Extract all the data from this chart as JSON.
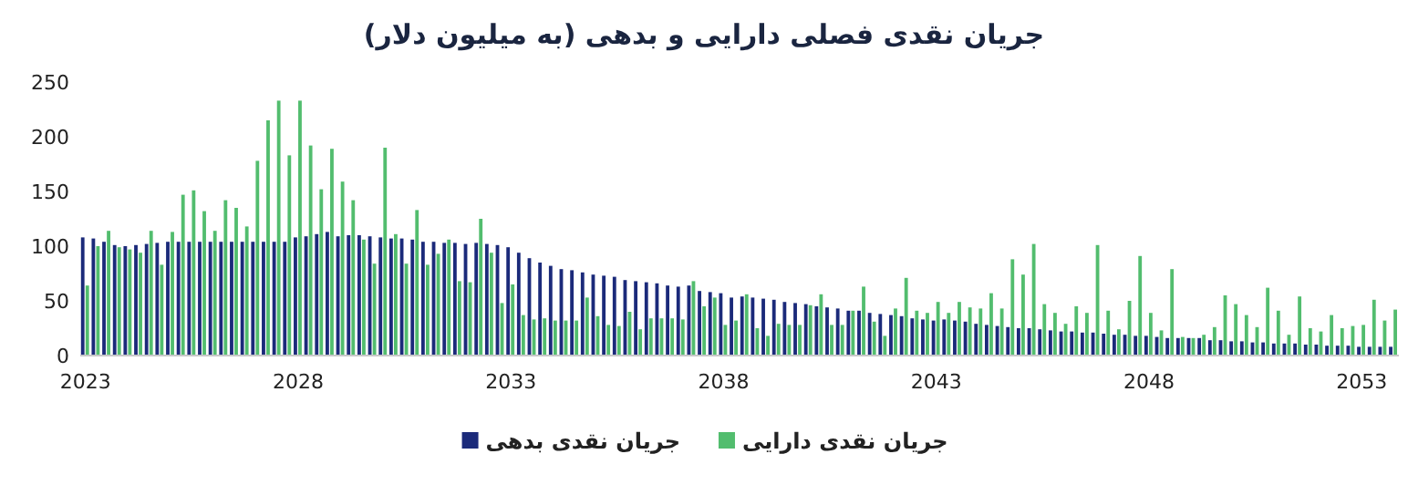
{
  "chart_data": {
    "type": "bar",
    "title": "جریان نقدی فصلی دارایی و بدهی (به میلیون دلار)",
    "categories": [
      "2023",
      null,
      null,
      null,
      null,
      null,
      null,
      null,
      null,
      null,
      null,
      null,
      null,
      null,
      null,
      null,
      null,
      null,
      null,
      null,
      "2028",
      null,
      null,
      null,
      null,
      null,
      null,
      null,
      null,
      null,
      null,
      null,
      null,
      null,
      null,
      null,
      null,
      null,
      null,
      null,
      "2033",
      null,
      null,
      null,
      null,
      null,
      null,
      null,
      null,
      null,
      null,
      null,
      null,
      null,
      null,
      null,
      null,
      null,
      null,
      null,
      "2038",
      null,
      null,
      null,
      null,
      null,
      null,
      null,
      null,
      null,
      null,
      null,
      null,
      null,
      null,
      null,
      null,
      null,
      null,
      null,
      "2043",
      null,
      null,
      null,
      null,
      null,
      null,
      null,
      null,
      null,
      null,
      null,
      null,
      null,
      null,
      null,
      null,
      null,
      null,
      null,
      "2048",
      null,
      null,
      null,
      null,
      null,
      null,
      null,
      null,
      null,
      null,
      null,
      null,
      null,
      null,
      null,
      null,
      null,
      null,
      null,
      "2053",
      null,
      null,
      null
    ],
    "series": [
      {
        "name": "جریان نقدی بدهی",
        "color": "#1b2a7a",
        "values": [
          108,
          107,
          104,
          101,
          100,
          101,
          102,
          103,
          104,
          104,
          104,
          104,
          104,
          104,
          104,
          104,
          104,
          104,
          104,
          104,
          108,
          109,
          111,
          113,
          109,
          110,
          110,
          109,
          108,
          107,
          107,
          106,
          104,
          104,
          103,
          103,
          102,
          103,
          102,
          101,
          99,
          94,
          89,
          85,
          82,
          79,
          78,
          76,
          74,
          73,
          72,
          69,
          68,
          67,
          66,
          64,
          63,
          64,
          59,
          58,
          57,
          53,
          54,
          53,
          52,
          51,
          49,
          48,
          47,
          45,
          44,
          43,
          41,
          41,
          39,
          38,
          37,
          36,
          34,
          33,
          32,
          33,
          32,
          31,
          29,
          28,
          27,
          26,
          25,
          25,
          24,
          23,
          22,
          22,
          21,
          21,
          20,
          19,
          19,
          18,
          18,
          17,
          16,
          16,
          16,
          16,
          14,
          14,
          13,
          13,
          12,
          12,
          11,
          11,
          11,
          10,
          10,
          9,
          9,
          9,
          8,
          8,
          8,
          8
        ]
      },
      {
        "name": "جریان نقدی دارایی",
        "color": "#52bd6e",
        "values": [
          64,
          100,
          114,
          99,
          97,
          94,
          114,
          83,
          113,
          147,
          151,
          132,
          114,
          142,
          135,
          118,
          178,
          215,
          233,
          183,
          233,
          192,
          152,
          189,
          159,
          142,
          106,
          84,
          190,
          111,
          84,
          133,
          83,
          93,
          106,
          68,
          67,
          125,
          94,
          48,
          65,
          37,
          33,
          34,
          32,
          32,
          32,
          53,
          36,
          28,
          27,
          40,
          24,
          34,
          34,
          34,
          33,
          68,
          45,
          53,
          28,
          32,
          56,
          25,
          18,
          29,
          28,
          28,
          46,
          56,
          28,
          28,
          41,
          63,
          31,
          18,
          43,
          71,
          41,
          39,
          49,
          39,
          49,
          44,
          43,
          57,
          43,
          88,
          74,
          102,
          47,
          39,
          29,
          45,
          39,
          101,
          41,
          24,
          50,
          91,
          39,
          23,
          79,
          17,
          16,
          19,
          26,
          55,
          47,
          37,
          26,
          62,
          41,
          19,
          54,
          25,
          22,
          37,
          25,
          27,
          28,
          51,
          32,
          42
        ]
      }
    ],
    "ylim": [
      0,
      250
    ],
    "yticks": [
      0,
      50,
      100,
      150,
      200,
      250
    ],
    "legend": "bottom"
  }
}
